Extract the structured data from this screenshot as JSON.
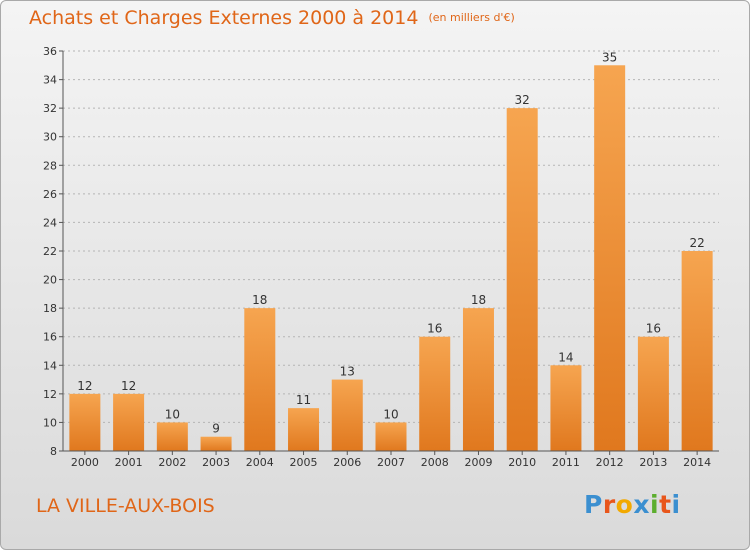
{
  "chart_data": {
    "type": "bar",
    "title": "Achats et Charges Externes 2000 à 2014",
    "subtitle": "(en milliers d'€)",
    "categories": [
      "2000",
      "2001",
      "2002",
      "2003",
      "2004",
      "2005",
      "2006",
      "2007",
      "2008",
      "2009",
      "2010",
      "2011",
      "2012",
      "2013",
      "2014"
    ],
    "values": [
      12,
      12,
      10,
      9,
      18,
      11,
      13,
      10,
      16,
      18,
      32,
      14,
      35,
      16,
      22
    ],
    "ylim": [
      8,
      36
    ],
    "yticks": [
      8,
      10,
      12,
      14,
      16,
      18,
      20,
      22,
      24,
      26,
      28,
      30,
      32,
      34,
      36
    ],
    "grid": true,
    "bar_color": "#f0913a",
    "label_color": "#333333"
  },
  "footer": {
    "commune": "LA VILLE-AUX-BOIS",
    "brand": "Proxiti"
  },
  "colors": {
    "title": "#e06618",
    "brand_letters": [
      "#3b8fd0",
      "#e8561b",
      "#f2a900",
      "#3b8fd0",
      "#5cae2e",
      "#e8561b",
      "#3b8fd0"
    ]
  }
}
